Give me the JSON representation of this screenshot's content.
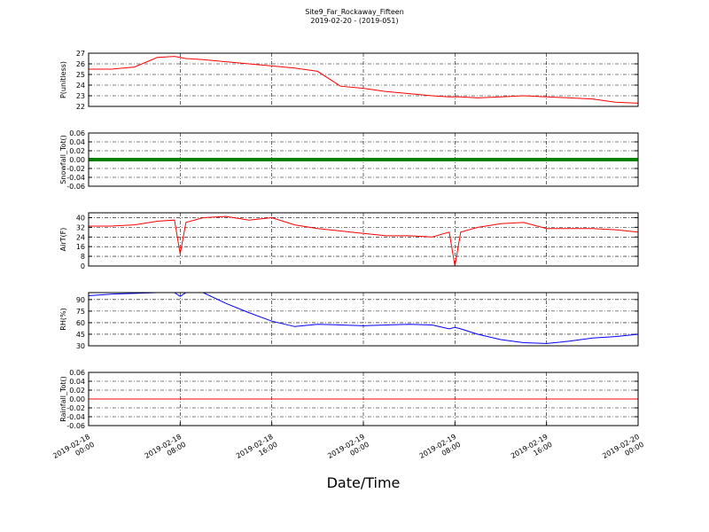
{
  "title": "Site9_Far_Rockaway_Fifteen",
  "subtitle": "2019-02-20 - (2019-051)",
  "x_axis": {
    "label": "Date/Time",
    "xlim": [
      "2019-02-18 00:00",
      "2019-02-20 00:00"
    ],
    "xticks": [
      {
        "value": "2019-02-18 00:00",
        "label": [
          "2019-02-18",
          "00:00"
        ]
      },
      {
        "value": "2019-02-18 08:00",
        "label": [
          "2019-02-18",
          "08:00"
        ]
      },
      {
        "value": "2019-02-18 16:00",
        "label": [
          "2019-02-18",
          "16:00"
        ]
      },
      {
        "value": "2019-02-19 00:00",
        "label": [
          "2019-02-19",
          "00:00"
        ]
      },
      {
        "value": "2019-02-19 08:00",
        "label": [
          "2019-02-19",
          "08:00"
        ]
      },
      {
        "value": "2019-02-19 16:00",
        "label": [
          "2019-02-19",
          "16:00"
        ]
      },
      {
        "value": "2019-02-20 00:00",
        "label": [
          "2019-02-20",
          "00:00"
        ]
      }
    ],
    "x": [
      "2019-02-18 00:00",
      "2019-02-18 02:00",
      "2019-02-18 04:00",
      "2019-02-18 06:00",
      "2019-02-18 07:30",
      "2019-02-18 08:00",
      "2019-02-18 08:30",
      "2019-02-18 10:00",
      "2019-02-18 12:00",
      "2019-02-18 14:00",
      "2019-02-18 16:00",
      "2019-02-18 18:00",
      "2019-02-18 20:00",
      "2019-02-18 22:00",
      "2019-02-19 00:00",
      "2019-02-19 02:00",
      "2019-02-19 04:00",
      "2019-02-19 06:00",
      "2019-02-19 07:30",
      "2019-02-19 08:00",
      "2019-02-19 08:30",
      "2019-02-19 10:00",
      "2019-02-19 12:00",
      "2019-02-19 14:00",
      "2019-02-19 16:00",
      "2019-02-19 18:00",
      "2019-02-19 20:00",
      "2019-02-19 22:00",
      "2019-02-20 00:00"
    ]
  },
  "chart_data": [
    {
      "type": "line",
      "ylabel": "P(unitless)",
      "color": "#ff0000",
      "line_width": 1,
      "grid": true,
      "ylim": [
        22,
        27
      ],
      "yticks": [
        22,
        23,
        24,
        25,
        26,
        27
      ],
      "values": [
        25.5,
        25.5,
        25.7,
        26.6,
        26.7,
        26.6,
        26.5,
        26.4,
        26.2,
        26.0,
        25.8,
        25.6,
        25.3,
        23.9,
        23.7,
        23.4,
        23.2,
        23.0,
        22.9,
        22.9,
        22.9,
        22.8,
        22.9,
        23.0,
        22.9,
        22.8,
        22.7,
        22.4,
        22.3
      ]
    },
    {
      "type": "line",
      "ylabel": "Snowfall_Tot()",
      "color": "#008000",
      "line_width": 4,
      "grid": true,
      "ylim": [
        -0.06,
        0.06
      ],
      "yticks": [
        -0.06,
        -0.04,
        -0.02,
        {
          "value": 0,
          "label": "0.00"
        },
        0.02,
        0.04,
        0.06
      ],
      "values": [
        0,
        0,
        0,
        0,
        0,
        0,
        0,
        0,
        0,
        0,
        0,
        0,
        0,
        0,
        0,
        0,
        0,
        0,
        0,
        0,
        0,
        0,
        0,
        0,
        0,
        0,
        0,
        0,
        0
      ]
    },
    {
      "type": "line",
      "ylabel": "AirT(F)",
      "color": "#ff0000",
      "line_width": 1,
      "grid": true,
      "ylim": [
        0,
        44
      ],
      "yticks": [
        0,
        8,
        16,
        24,
        32,
        40
      ],
      "values": [
        33,
        33,
        34,
        37,
        38,
        10,
        36,
        40,
        41,
        38,
        40,
        34,
        31,
        29,
        27,
        25,
        25,
        24,
        28,
        0,
        28,
        32,
        35,
        36,
        31,
        31,
        31,
        30,
        28
      ]
    },
    {
      "type": "line",
      "ylabel": "RH(%)",
      "color": "#0000ff",
      "line_width": 1,
      "grid": true,
      "ylim": [
        30,
        99
      ],
      "yticks": [
        30,
        45,
        60,
        75,
        90
      ],
      "values": [
        95,
        97,
        98,
        99,
        99,
        94,
        99,
        99,
        85,
        73,
        62,
        55,
        58,
        57,
        56,
        57,
        58,
        57,
        52,
        54,
        52,
        45,
        38,
        34,
        33,
        36,
        40,
        42,
        45
      ]
    },
    {
      "type": "line",
      "ylabel": "Rainfall_Tot()",
      "color": "#ff0000",
      "line_width": 1,
      "grid": true,
      "ylim": [
        -0.06,
        0.06
      ],
      "yticks": [
        -0.06,
        -0.04,
        -0.02,
        {
          "value": 0,
          "label": "0.00"
        },
        0.02,
        0.04,
        0.06
      ],
      "values": [
        0,
        0,
        0,
        0,
        0,
        0,
        0,
        0,
        0,
        0,
        0,
        0,
        0,
        0,
        0,
        0,
        0,
        0,
        0,
        0,
        0,
        0,
        0,
        0,
        0,
        0,
        0,
        0,
        0
      ]
    }
  ]
}
